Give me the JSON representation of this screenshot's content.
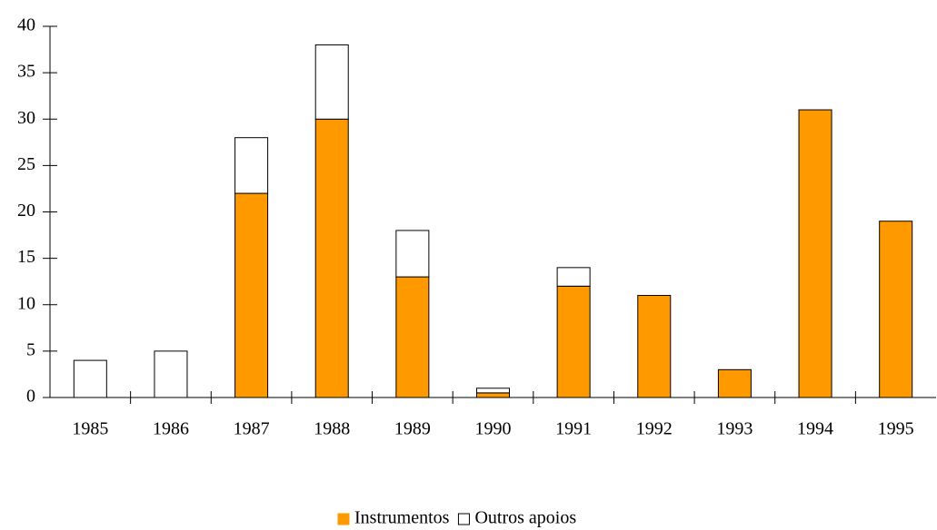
{
  "chart_data": {
    "type": "stacked_bar",
    "categories": [
      "1985",
      "1986",
      "1987",
      "1988",
      "1989",
      "1990",
      "1991",
      "1992",
      "1993",
      "1994",
      "1995"
    ],
    "series": [
      {
        "name": "Instrumentos",
        "color": "#ff9900",
        "values": [
          0,
          0,
          22,
          30,
          13,
          0.5,
          12,
          11,
          3,
          31,
          19
        ]
      },
      {
        "name": "Outros apoios",
        "color": "#ffffff",
        "values": [
          4,
          5,
          6,
          8,
          5,
          0.5,
          2,
          0,
          0,
          0,
          0
        ]
      }
    ],
    "ylim": [
      0,
      40
    ],
    "yticks": [
      0,
      5,
      10,
      15,
      20,
      25,
      30,
      35,
      40
    ],
    "grid": false,
    "legend": "bottom"
  }
}
